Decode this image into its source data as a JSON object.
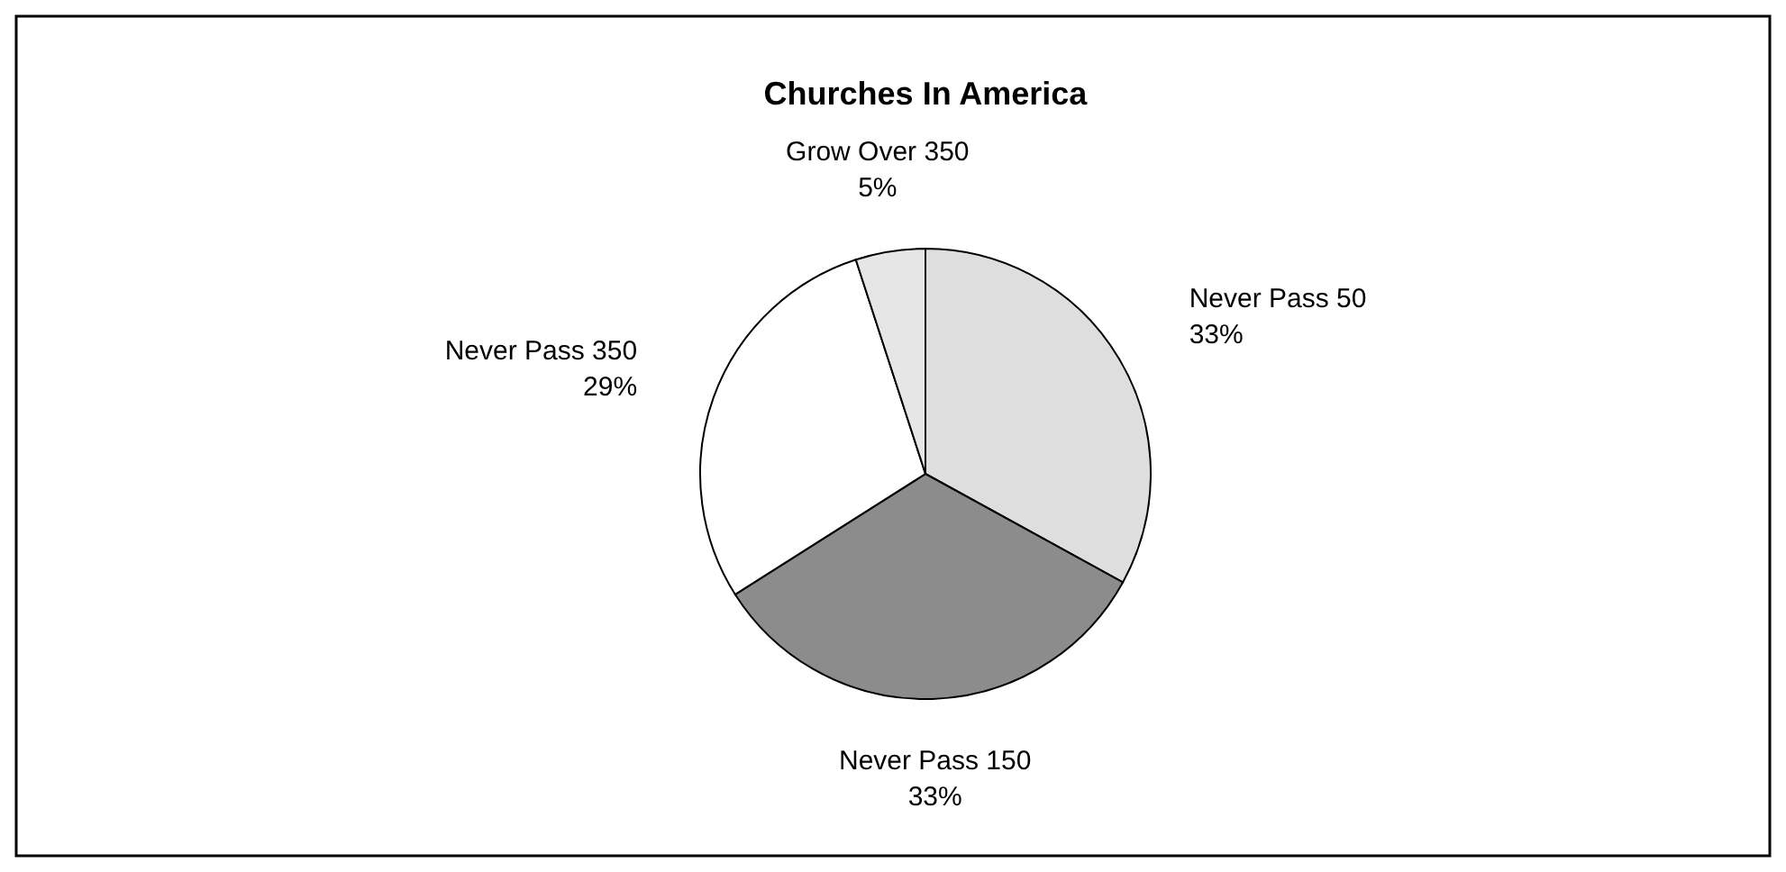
{
  "chart_data": {
    "type": "pie",
    "title": "Churches In America",
    "categories": [
      "Never Pass 50",
      "Never Pass 150",
      "Never Pass 350",
      "Grow Over 350"
    ],
    "values": [
      33,
      33,
      29,
      5
    ],
    "colors": [
      "#dedede",
      "#8c8c8c",
      "#ffffff",
      "#e6e6e6"
    ],
    "value_labels": [
      "33%",
      "33%",
      "29%",
      "5%"
    ]
  }
}
